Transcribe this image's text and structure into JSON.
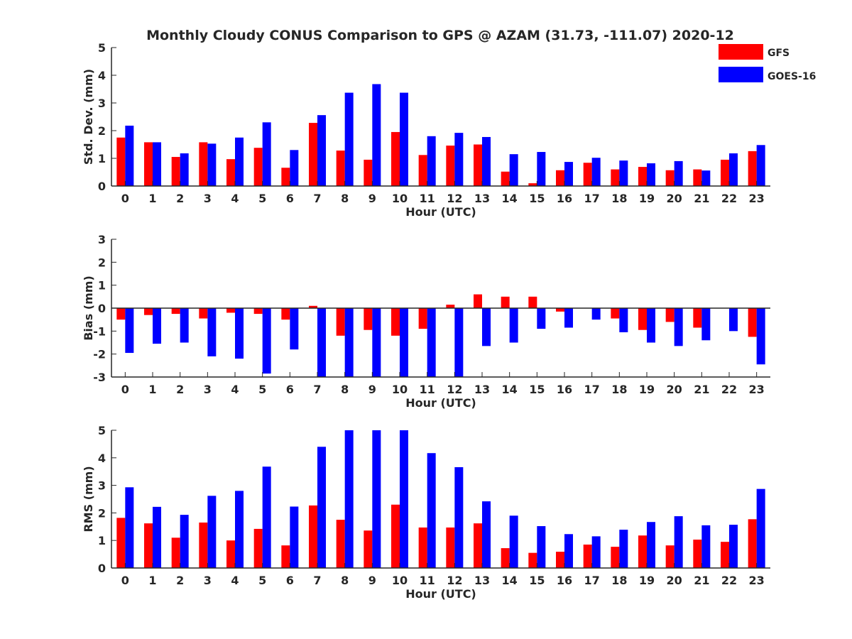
{
  "chart_data": {
    "type": "bar",
    "title": "Monthly Cloudy CONUS Comparison to GPS @ AZAM (31.73, -111.07) 2020-12",
    "legend": {
      "placement": "top-right",
      "entries": [
        {
          "name": "GFS",
          "color": "#ff0000"
        },
        {
          "name": "GOES-16",
          "color": "#0000ff"
        }
      ]
    },
    "categories": [
      "0",
      "1",
      "2",
      "3",
      "4",
      "5",
      "6",
      "7",
      "8",
      "9",
      "10",
      "11",
      "12",
      "13",
      "14",
      "15",
      "16",
      "17",
      "18",
      "19",
      "20",
      "21",
      "22",
      "23"
    ],
    "panels": [
      {
        "ylabel": "Std. Dev. (mm)",
        "xlabel": "Hour (UTC)",
        "ylim": [
          0,
          5
        ],
        "yticks": [
          "0",
          "1",
          "2",
          "3",
          "4",
          "5"
        ],
        "series": [
          {
            "name": "GFS",
            "values": [
              1.75,
              1.58,
              1.05,
              1.58,
              0.97,
              1.38,
              0.66,
              2.28,
              1.28,
              0.95,
              1.95,
              1.12,
              1.46,
              1.5,
              0.52,
              0.1,
              0.57,
              0.84,
              0.6,
              0.69,
              0.57,
              0.6,
              0.95,
              1.26
            ]
          },
          {
            "name": "GOES-16",
            "values": [
              2.18,
              1.58,
              1.18,
              1.53,
              1.75,
              2.3,
              1.3,
              2.56,
              3.37,
              3.68,
              3.37,
              1.8,
              1.92,
              1.77,
              1.15,
              1.23,
              0.87,
              1.02,
              0.92,
              0.82,
              0.9,
              0.56,
              1.18,
              1.48
            ]
          }
        ]
      },
      {
        "ylabel": "Bias (mm)",
        "xlabel": "Hour (UTC)",
        "ylim": [
          -3,
          3
        ],
        "yticks": [
          "-3",
          "-2",
          "-1",
          "0",
          "1",
          "2",
          "3"
        ],
        "series": [
          {
            "name": "GFS",
            "values": [
              -0.5,
              -0.3,
              -0.25,
              -0.45,
              -0.2,
              -0.25,
              -0.5,
              0.1,
              -1.2,
              -0.95,
              -1.2,
              -0.9,
              0.15,
              0.6,
              0.5,
              0.5,
              -0.15,
              0.0,
              -0.45,
              -0.95,
              -0.6,
              -0.85,
              0.0,
              -1.25
            ]
          },
          {
            "name": "GOES-16",
            "values": [
              -1.95,
              -1.55,
              -1.5,
              -2.1,
              -2.2,
              -2.85,
              -1.8,
              -3.0,
              -3.0,
              -3.0,
              -3.0,
              -3.0,
              -3.0,
              -1.65,
              -1.5,
              -0.9,
              -0.85,
              -0.5,
              -1.05,
              -1.5,
              -1.65,
              -1.4,
              -1.0,
              -2.45
            ]
          }
        ]
      },
      {
        "ylabel": "RMS (mm)",
        "xlabel": "Hour (UTC)",
        "ylim": [
          0,
          5
        ],
        "yticks": [
          "0",
          "1",
          "2",
          "3",
          "4",
          "5"
        ],
        "series": [
          {
            "name": "GFS",
            "values": [
              1.82,
              1.62,
              1.1,
              1.65,
              1.0,
              1.42,
              0.82,
              2.27,
              1.75,
              1.36,
              2.3,
              1.47,
              1.47,
              1.62,
              0.72,
              0.55,
              0.59,
              0.85,
              0.77,
              1.18,
              0.82,
              1.03,
              0.95,
              1.77
            ]
          },
          {
            "name": "GOES-16",
            "values": [
              2.93,
              2.22,
              1.93,
              2.62,
              2.8,
              3.68,
              2.23,
              4.4,
              5.0,
              5.0,
              5.0,
              4.17,
              3.66,
              2.42,
              1.9,
              1.52,
              1.23,
              1.15,
              1.39,
              1.67,
              1.88,
              1.55,
              1.57,
              2.87
            ]
          }
        ]
      }
    ]
  }
}
